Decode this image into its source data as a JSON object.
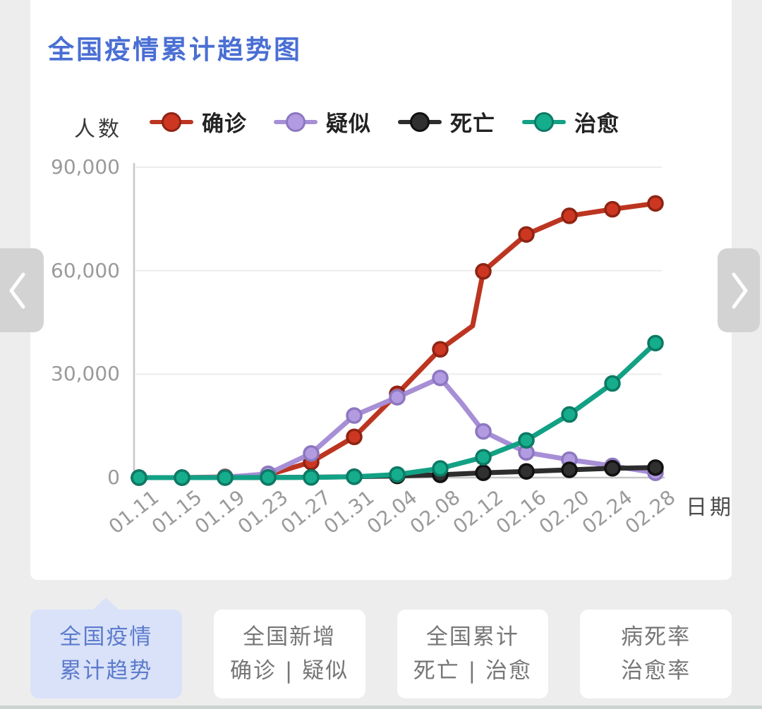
{
  "page": {
    "title": "全国疫情累计趋势图"
  },
  "chart_data": {
    "type": "line",
    "title": "全国疫情累计趋势图",
    "xlabel": "日期",
    "ylabel": "人数",
    "categories": [
      "01.11",
      "01.15",
      "01.19",
      "01.23",
      "01.27",
      "01.31",
      "02.04",
      "02.08",
      "02.12",
      "02.16",
      "02.20",
      "02.24",
      "02.28"
    ],
    "ylim": [
      0,
      90000
    ],
    "yticks": [
      0,
      30000,
      60000,
      90000
    ],
    "ytick_labels": [
      "0",
      "30,000",
      "60,000",
      "90,000"
    ],
    "grid": true,
    "legend_position": "top",
    "series": [
      {
        "name": "确诊",
        "color": "#bc3520",
        "dot": "#cd3722",
        "ring": "#8e2413",
        "values": [
          0,
          0,
          200,
          800,
          4500,
          11800,
          24300,
          37200,
          59800,
          70500,
          75900,
          77800,
          79500
        ]
      },
      {
        "name": "疑似",
        "color": "#a78fd6",
        "dot": "#b29be0",
        "ring": "#8d77c0",
        "values": [
          0,
          0,
          100,
          1100,
          7000,
          18000,
          23300,
          28900,
          13400,
          7300,
          5200,
          3400,
          1400
        ]
      },
      {
        "name": "死亡",
        "color": "#2d2d2d",
        "dot": "#303030",
        "ring": "#111111",
        "values": [
          0,
          0,
          0,
          30,
          100,
          260,
          490,
          810,
          1400,
          1800,
          2250,
          2700,
          2900
        ]
      },
      {
        "name": "治愈",
        "color": "#13a185",
        "dot": "#16ad8d",
        "ring": "#0c7a64",
        "values": [
          0,
          0,
          0,
          40,
          60,
          240,
          900,
          2650,
          5900,
          10800,
          18300,
          27300,
          39000
        ]
      }
    ],
    "unmarked_vertices": [
      {
        "series": 0,
        "after_index": 7,
        "fraction": 0.75,
        "value": 44000
      },
      {
        "series": 1,
        "after_index": 7,
        "fraction": 0.5,
        "value": 21500
      }
    ]
  },
  "tabs": [
    {
      "line1": "全国疫情",
      "line2": "累计趋势",
      "selected": true
    },
    {
      "line1": "全国新增",
      "line2": "确诊 | 疑似",
      "selected": false
    },
    {
      "line1": "全国累计",
      "line2": "死亡 | 治愈",
      "selected": false
    },
    {
      "line1": "病死率",
      "line2": "治愈率",
      "selected": false
    }
  ],
  "colors": {
    "title_blue": "#4a6fd4",
    "selected_tab_bg": "#d9e2f8",
    "selected_tab_text": "#5d7bcd",
    "axis_line": "#c7c7c7",
    "grid_line": "#ececec",
    "tick_text": "#9a9a9a"
  }
}
